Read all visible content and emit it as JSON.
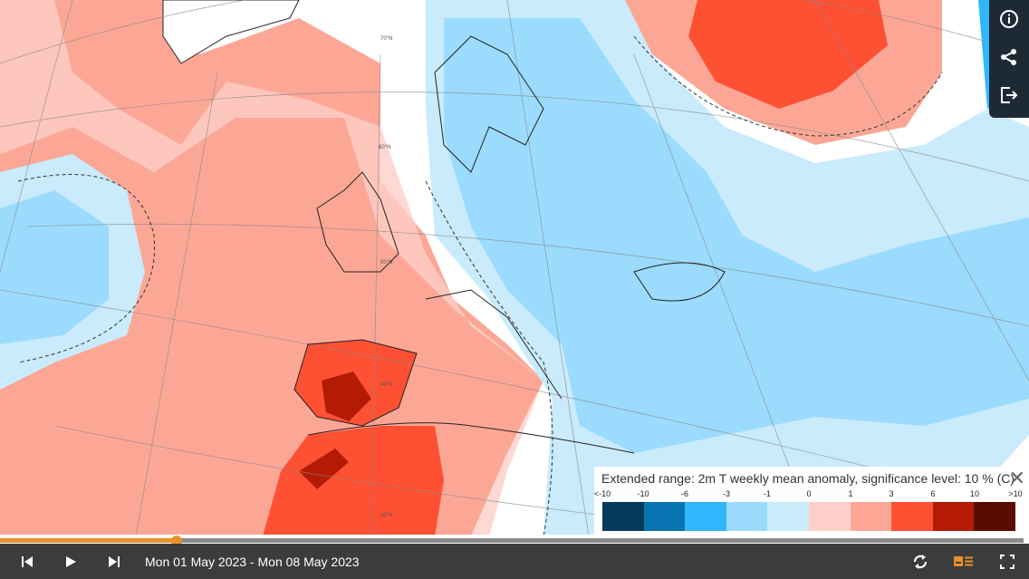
{
  "legend": {
    "title": "Extended range: 2m T weekly mean anomaly, significance level: 10 % (C)",
    "ticks": [
      "<-10",
      "-10",
      "-6",
      "-3",
      "-1",
      "0",
      "1",
      "3",
      "6",
      "10",
      ">10"
    ],
    "colors": [
      "#053a5a",
      "#0874b1",
      "#30b7fb",
      "#9bdbfd",
      "#c9ebfc",
      "#fecfc8",
      "#fca796",
      "#fe5033",
      "#b31b05",
      "#590d02"
    ]
  },
  "map": {
    "lat_labels": [
      "70°N",
      "60°N",
      "50°N",
      "40°N",
      "30°N"
    ]
  },
  "timeline": {
    "progress_percent": 17.2,
    "accent": "#e8912a"
  },
  "bottom_bar": {
    "date_range": "Mon 01 May 2023 - Mon 08 May 2023"
  },
  "toolbar": {
    "icons": [
      "info-icon",
      "share-icon",
      "export-icon"
    ]
  }
}
